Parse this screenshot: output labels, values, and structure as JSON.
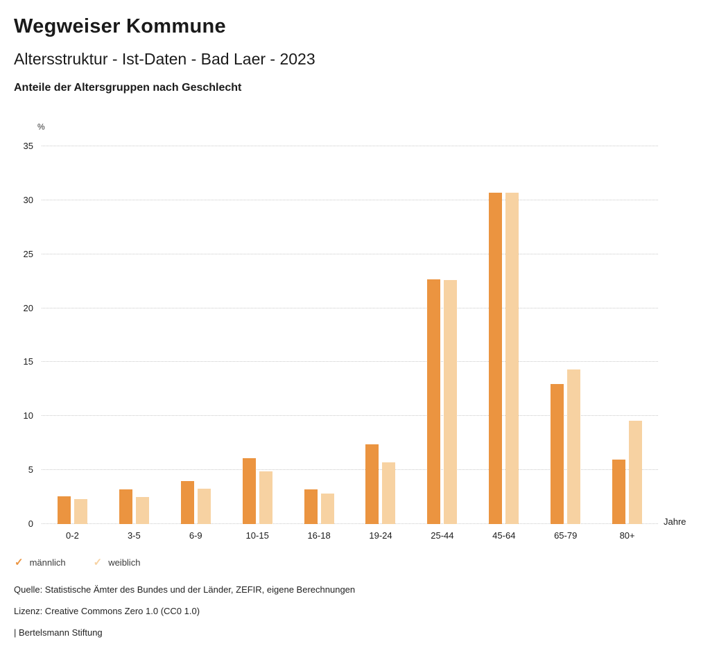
{
  "header": {
    "title": "Wegweiser Kommune",
    "subtitle": "Altersstruktur - Ist-Daten - Bad Laer - 2023",
    "chart_heading": "Anteile der Altersgruppen nach Geschlecht"
  },
  "chart_data": {
    "type": "bar",
    "title": "Anteile der Altersgruppen nach Geschlecht",
    "categories": [
      "0-2",
      "3-5",
      "6-9",
      "10-15",
      "16-18",
      "19-24",
      "25-44",
      "45-64",
      "65-79",
      "80+"
    ],
    "series": [
      {
        "name": "männlich",
        "color": "#EB9440",
        "values": [
          2.6,
          3.2,
          4.0,
          6.1,
          3.2,
          7.4,
          22.7,
          30.7,
          13.0,
          6.0
        ]
      },
      {
        "name": "weiblich",
        "color": "#F7D2A2",
        "values": [
          2.3,
          2.5,
          3.3,
          4.9,
          2.8,
          5.7,
          22.6,
          30.7,
          14.3,
          9.6
        ]
      }
    ],
    "ylabel": "%",
    "xlabel": "Jahre",
    "ylim": [
      0,
      35
    ],
    "yticks": [
      0,
      5,
      10,
      15,
      20,
      25,
      30,
      35
    ],
    "grid": "dotted-horizontal",
    "legend_position": "bottom-left"
  },
  "legend": [
    {
      "label": "männlich",
      "color": "#EB9440"
    },
    {
      "label": "weiblich",
      "color": "#F7D2A2"
    }
  ],
  "icons": {
    "legend_check": "✓"
  },
  "footer": {
    "source": "Quelle: Statistische Ämter des Bundes und der Länder, ZEFIR, eigene Berechnungen",
    "license": "Lizenz: Creative Commons Zero 1.0 (CC0 1.0)",
    "brand": "| Bertelsmann Stiftung"
  }
}
